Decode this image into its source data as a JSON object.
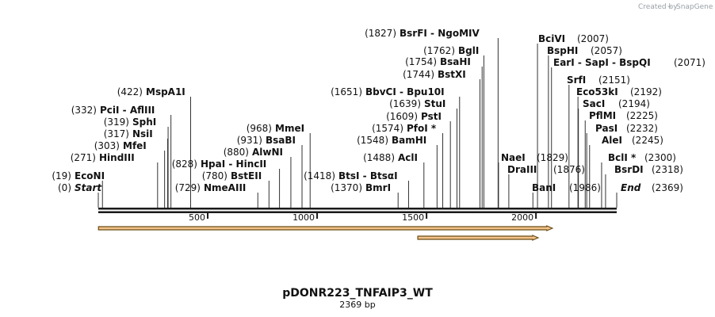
{
  "credit": {
    "prefix": "Created by",
    "brand": "SnapGene"
  },
  "plasmid": {
    "name": "pDONR223_TNFAIP3_WT",
    "size_label": "2369 bp",
    "length": 2369
  },
  "colors": {
    "backbone": "#1a1a1a",
    "feature_fill": "#f2c38a",
    "feature_stroke": "#6b4c14",
    "leader": "#333333"
  },
  "ticks": [
    {
      "pos": 500,
      "label": "500"
    },
    {
      "pos": 1000,
      "label": "1000"
    },
    {
      "pos": 1500,
      "label": "1500"
    },
    {
      "pos": 2000,
      "label": "2000"
    }
  ],
  "features": [
    {
      "name": "feature-arrow-1",
      "start": 1,
      "end": 2075,
      "direction": "forward"
    },
    {
      "name": "feature-arrow-2",
      "start": 1460,
      "end": 2010,
      "direction": "forward"
    }
  ],
  "sites": [
    {
      "name": "Start",
      "pos": 0,
      "coord": "(0)",
      "side": "left",
      "style": "italic"
    },
    {
      "name": "EcoNI",
      "pos": 19,
      "coord": "(19)",
      "side": "left"
    },
    {
      "name": "HindIII",
      "pos": 271,
      "coord": "(271)",
      "side": "left"
    },
    {
      "name": "MfeI",
      "pos": 303,
      "coord": "(303)",
      "side": "left"
    },
    {
      "name": "NsiI",
      "pos": 317,
      "coord": "(317)",
      "side": "left"
    },
    {
      "name": "SphI",
      "pos": 319,
      "coord": "(319)",
      "side": "left"
    },
    {
      "name": "PciI  - AflIII",
      "pos": 332,
      "coord": "(332)",
      "side": "left"
    },
    {
      "name": "MspA1I",
      "pos": 422,
      "coord": "(422)",
      "side": "left"
    },
    {
      "name": "NmeAIII",
      "pos": 729,
      "coord": "(729)",
      "side": "left"
    },
    {
      "name": "BstEII",
      "pos": 780,
      "coord": "(780)",
      "side": "left"
    },
    {
      "name": "HpaI  - HincII",
      "pos": 828,
      "coord": "(828)",
      "side": "left"
    },
    {
      "name": "AlwNI",
      "pos": 880,
      "coord": "(880)",
      "side": "left"
    },
    {
      "name": "BsaBI",
      "pos": 931,
      "coord": "(931)",
      "side": "left"
    },
    {
      "name": "MmeI",
      "pos": 968,
      "coord": "(968)",
      "side": "left"
    },
    {
      "name": "BmrI",
      "pos": 1370,
      "coord": "(1370)",
      "side": "left"
    },
    {
      "name": "BtsI  - BtsαI",
      "pos": 1418,
      "coord": "(1418)",
      "side": "left"
    },
    {
      "name": "AclI",
      "pos": 1488,
      "coord": "(1488)",
      "side": "left"
    },
    {
      "name": "BamHI",
      "pos": 1548,
      "coord": "(1548)",
      "side": "left"
    },
    {
      "name": "PfoI *",
      "pos": 1574,
      "coord": "(1574)",
      "side": "left"
    },
    {
      "name": "PstI",
      "pos": 1609,
      "coord": "(1609)",
      "side": "left"
    },
    {
      "name": "StuI",
      "pos": 1639,
      "coord": "(1639)",
      "side": "left"
    },
    {
      "name": "BbvCI  - Bpu10I",
      "pos": 1651,
      "coord": "(1651)",
      "side": "left"
    },
    {
      "name": "BstXI",
      "pos": 1744,
      "coord": "(1744)",
      "side": "left"
    },
    {
      "name": "BsaHI",
      "pos": 1754,
      "coord": "(1754)",
      "side": "left"
    },
    {
      "name": "BglI",
      "pos": 1762,
      "coord": "(1762)",
      "side": "left"
    },
    {
      "name": "BsrFI  - NgoMIV",
      "pos": 1827,
      "coord": "(1827)",
      "side": "left"
    },
    {
      "name": "NaeI",
      "pos": 1829,
      "coord": "(1829)",
      "side": "right"
    },
    {
      "name": "DraIII",
      "pos": 1876,
      "coord": "(1876)",
      "side": "right"
    },
    {
      "name": "BanI",
      "pos": 1986,
      "coord": "(1986)",
      "side": "right"
    },
    {
      "name": "BciVI",
      "pos": 2007,
      "coord": "(2007)",
      "side": "right"
    },
    {
      "name": "BspHI",
      "pos": 2057,
      "coord": "(2057)",
      "side": "right"
    },
    {
      "name": "EarI  - SapI  - BspQI",
      "pos": 2071,
      "coord": "(2071)",
      "side": "right"
    },
    {
      "name": "SrfI",
      "pos": 2151,
      "coord": "(2151)",
      "side": "right"
    },
    {
      "name": "Eco53kI",
      "pos": 2192,
      "coord": "(2192)",
      "side": "right"
    },
    {
      "name": "SacI",
      "pos": 2194,
      "coord": "(2194)",
      "side": "right"
    },
    {
      "name": "PflMI",
      "pos": 2225,
      "coord": "(2225)",
      "side": "right"
    },
    {
      "name": "PasI",
      "pos": 2232,
      "coord": "(2232)",
      "side": "right"
    },
    {
      "name": "AleI",
      "pos": 2245,
      "coord": "(2245)",
      "side": "right"
    },
    {
      "name": "BclI *",
      "pos": 2300,
      "coord": "(2300)",
      "side": "right"
    },
    {
      "name": "BsrDI",
      "pos": 2318,
      "coord": "(2318)",
      "side": "right"
    },
    {
      "name": "End",
      "pos": 2369,
      "coord": "(2369)",
      "side": "right",
      "style": "italic"
    }
  ]
}
